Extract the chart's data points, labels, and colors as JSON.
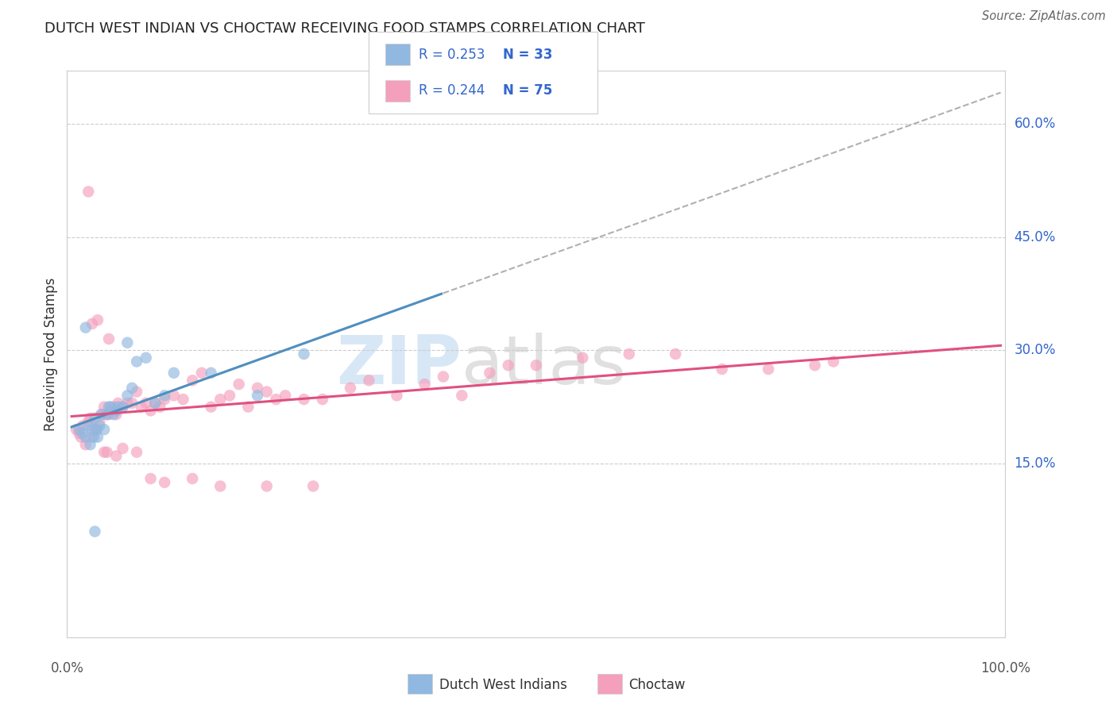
{
  "title": "DUTCH WEST INDIAN VS CHOCTAW RECEIVING FOOD STAMPS CORRELATION CHART",
  "source": "Source: ZipAtlas.com",
  "ylabel": "Receiving Food Stamps",
  "ytick_labels": [
    "15.0%",
    "30.0%",
    "45.0%",
    "60.0%"
  ],
  "ytick_values": [
    0.15,
    0.3,
    0.45,
    0.6
  ],
  "xlim": [
    -0.005,
    1.005
  ],
  "ylim": [
    -0.08,
    0.67
  ],
  "background_color": "#ffffff",
  "blue_scatter_color": "#90b8e0",
  "pink_scatter_color": "#f4a0bc",
  "blue_line_color": "#4f8fbf",
  "pink_line_color": "#e05080",
  "gray_dash_color": "#b0b0b0",
  "legend_text_color": "#3366cc",
  "grid_color": "#cccccc",
  "dutch_x": [
    0.008,
    0.012,
    0.015,
    0.018,
    0.02,
    0.022,
    0.024,
    0.025,
    0.027,
    0.028,
    0.03,
    0.032,
    0.035,
    0.038,
    0.04,
    0.042,
    0.045,
    0.048,
    0.05,
    0.055,
    0.06,
    0.065,
    0.07,
    0.08,
    0.09,
    0.1,
    0.11,
    0.15,
    0.2,
    0.25,
    0.06,
    0.015,
    0.025
  ],
  "dutch_y": [
    0.195,
    0.19,
    0.185,
    0.2,
    0.175,
    0.195,
    0.185,
    0.21,
    0.195,
    0.185,
    0.2,
    0.215,
    0.195,
    0.215,
    0.225,
    0.225,
    0.215,
    0.22,
    0.225,
    0.225,
    0.24,
    0.25,
    0.285,
    0.29,
    0.23,
    0.24,
    0.27,
    0.27,
    0.24,
    0.295,
    0.31,
    0.33,
    0.06
  ],
  "choctaw_x": [
    0.005,
    0.008,
    0.01,
    0.012,
    0.015,
    0.018,
    0.02,
    0.022,
    0.025,
    0.027,
    0.03,
    0.032,
    0.035,
    0.038,
    0.04,
    0.042,
    0.045,
    0.048,
    0.05,
    0.055,
    0.06,
    0.065,
    0.07,
    0.075,
    0.08,
    0.085,
    0.09,
    0.095,
    0.1,
    0.11,
    0.12,
    0.13,
    0.14,
    0.15,
    0.16,
    0.17,
    0.18,
    0.19,
    0.2,
    0.21,
    0.22,
    0.23,
    0.25,
    0.27,
    0.3,
    0.32,
    0.35,
    0.38,
    0.4,
    0.42,
    0.45,
    0.47,
    0.5,
    0.55,
    0.6,
    0.65,
    0.7,
    0.75,
    0.8,
    0.82,
    0.04,
    0.028,
    0.018,
    0.022,
    0.035,
    0.048,
    0.038,
    0.055,
    0.07,
    0.085,
    0.1,
    0.13,
    0.16,
    0.21,
    0.26
  ],
  "choctaw_y": [
    0.195,
    0.19,
    0.185,
    0.2,
    0.175,
    0.205,
    0.21,
    0.185,
    0.195,
    0.195,
    0.205,
    0.215,
    0.225,
    0.215,
    0.215,
    0.22,
    0.225,
    0.215,
    0.23,
    0.225,
    0.23,
    0.23,
    0.245,
    0.225,
    0.23,
    0.22,
    0.23,
    0.225,
    0.235,
    0.24,
    0.235,
    0.26,
    0.27,
    0.225,
    0.235,
    0.24,
    0.255,
    0.225,
    0.25,
    0.245,
    0.235,
    0.24,
    0.235,
    0.235,
    0.25,
    0.26,
    0.24,
    0.255,
    0.265,
    0.24,
    0.27,
    0.28,
    0.28,
    0.29,
    0.295,
    0.295,
    0.275,
    0.275,
    0.28,
    0.285,
    0.315,
    0.34,
    0.51,
    0.335,
    0.165,
    0.16,
    0.165,
    0.17,
    0.165,
    0.13,
    0.125,
    0.13,
    0.12,
    0.12,
    0.12
  ]
}
